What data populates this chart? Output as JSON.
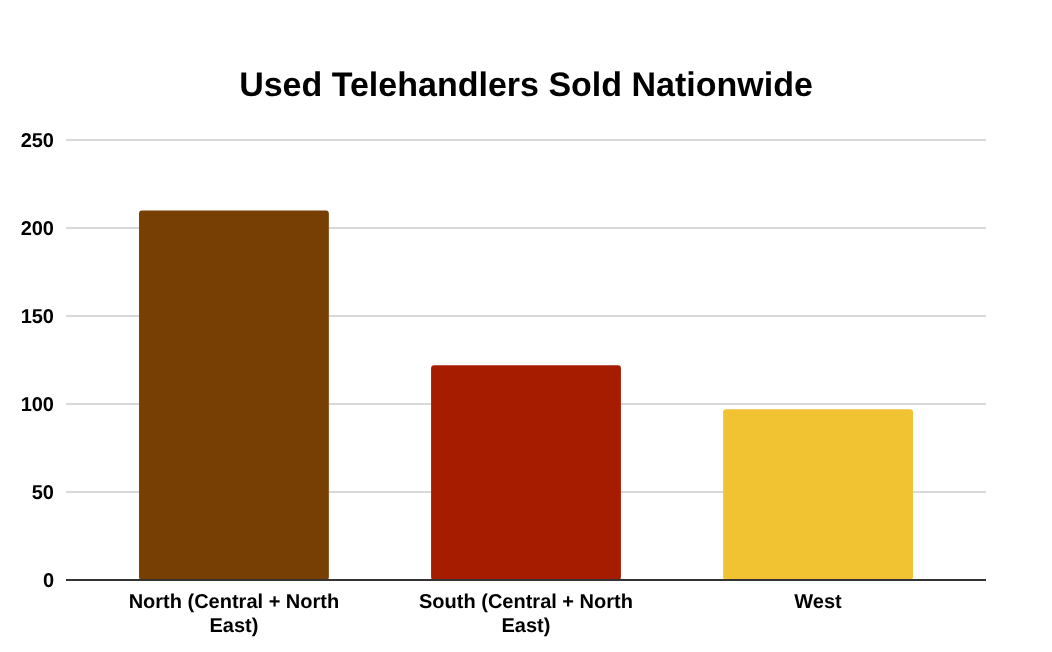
{
  "chart_data": {
    "type": "bar",
    "title": "Used Telehandlers Sold Nationwide",
    "categories": [
      "North (Central + North East)",
      "South (Central + North East)",
      "West"
    ],
    "values": [
      210,
      122,
      97
    ],
    "colors": [
      "#783f04",
      "#a61c00",
      "#f1c232"
    ],
    "ylim": [
      0,
      250
    ],
    "yticks": [
      0,
      50,
      100,
      150,
      200,
      250
    ],
    "grid": "y"
  }
}
